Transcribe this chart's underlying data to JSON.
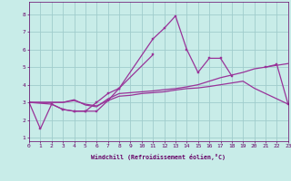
{
  "xlabel": "Windchill (Refroidissement éolien,°C)",
  "xlim": [
    0,
    23
  ],
  "ylim": [
    0.8,
    8.7
  ],
  "background_color": "#c8ece8",
  "grid_color": "#a0cccc",
  "line_color": "#993399",
  "x_ticks": [
    0,
    1,
    2,
    3,
    4,
    5,
    6,
    7,
    8,
    9,
    10,
    11,
    12,
    13,
    14,
    15,
    16,
    17,
    18,
    19,
    20,
    21,
    22,
    23
  ],
  "y_ticks": [
    1,
    2,
    3,
    4,
    5,
    6,
    7,
    8
  ],
  "series": [
    {
      "x": [
        0,
        1,
        2,
        3,
        4,
        5,
        6,
        7,
        8,
        11,
        12,
        13,
        14,
        15,
        16,
        17,
        18
      ],
      "y": [
        3.0,
        1.5,
        2.9,
        2.6,
        2.5,
        2.5,
        2.5,
        3.1,
        3.8,
        6.6,
        7.2,
        7.9,
        6.0,
        4.7,
        5.5,
        5.5,
        4.5
      ],
      "marker": true
    },
    {
      "x": [
        0,
        2,
        3,
        4,
        5,
        6,
        7,
        8,
        11
      ],
      "y": [
        3.0,
        2.9,
        2.6,
        2.5,
        2.5,
        3.0,
        3.5,
        3.8,
        5.7
      ],
      "marker": true
    },
    {
      "x": [
        0,
        3,
        4,
        5,
        6,
        7,
        8,
        9,
        10,
        11,
        12,
        13,
        14,
        15,
        16,
        17,
        18,
        19,
        20,
        21,
        22,
        23
      ],
      "y": [
        3.0,
        3.0,
        3.15,
        2.85,
        2.75,
        3.2,
        3.5,
        3.55,
        3.6,
        3.65,
        3.72,
        3.78,
        3.88,
        4.0,
        4.2,
        4.4,
        4.55,
        4.7,
        4.9,
        5.0,
        5.1,
        5.2
      ],
      "marker": false
    },
    {
      "x": [
        0,
        3,
        4,
        5,
        6,
        7,
        8,
        9,
        10,
        11,
        12,
        13,
        14,
        15,
        16,
        17,
        18,
        19,
        20,
        23
      ],
      "y": [
        3.0,
        3.0,
        3.1,
        2.9,
        2.8,
        3.1,
        3.35,
        3.4,
        3.5,
        3.55,
        3.6,
        3.7,
        3.78,
        3.82,
        3.9,
        4.0,
        4.1,
        4.2,
        3.8,
        2.9
      ],
      "marker": false
    },
    {
      "x": [
        21,
        22,
        23
      ],
      "y": [
        5.0,
        5.15,
        2.9
      ],
      "marker": true
    }
  ]
}
